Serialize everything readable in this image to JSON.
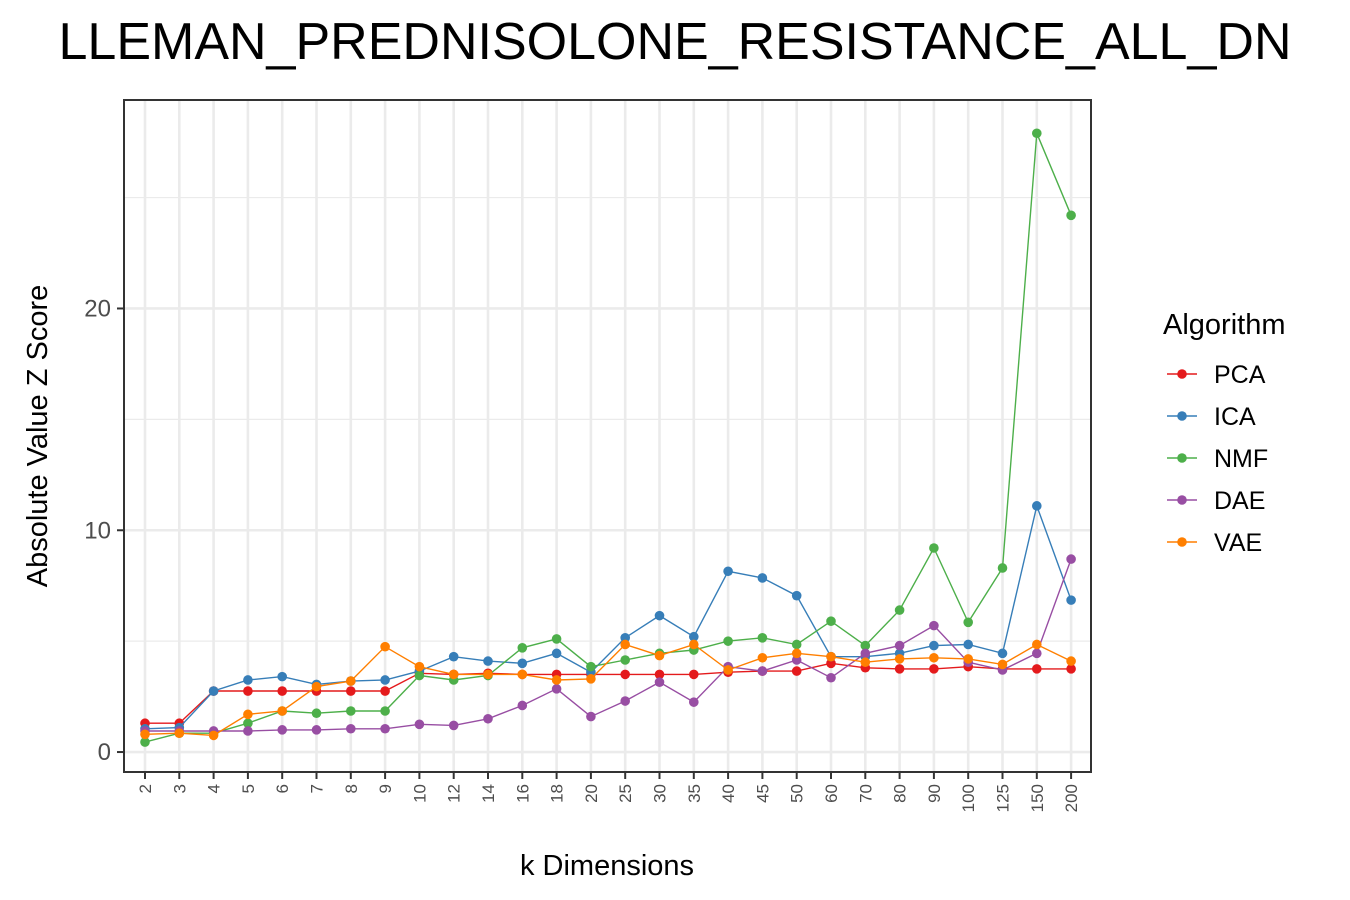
{
  "chart_data": {
    "type": "line",
    "title": "LLEMAN_PREDNISOLONE_RESISTANCE_ALL_DN",
    "xlabel": "k Dimensions",
    "ylabel": "Absolute Value Z Score",
    "categories": [
      "2",
      "3",
      "4",
      "5",
      "6",
      "7",
      "8",
      "9",
      "10",
      "12",
      "14",
      "16",
      "18",
      "20",
      "25",
      "30",
      "35",
      "40",
      "45",
      "50",
      "60",
      "70",
      "80",
      "90",
      "100",
      "125",
      "150",
      "200"
    ],
    "y_ticks": [
      0,
      10,
      20
    ],
    "ylim": [
      -0.9,
      29.4
    ],
    "grid": true,
    "legend": {
      "title": "Algorithm",
      "position": "right"
    },
    "series": [
      {
        "name": "PCA",
        "color": "#E41A1C",
        "values": [
          1.3,
          1.3,
          2.75,
          2.75,
          2.75,
          2.75,
          2.75,
          2.75,
          3.55,
          3.5,
          3.55,
          3.5,
          3.5,
          3.5,
          3.5,
          3.5,
          3.5,
          3.6,
          3.65,
          3.65,
          4.0,
          3.8,
          3.75,
          3.75,
          3.85,
          3.75,
          3.75,
          3.75
        ]
      },
      {
        "name": "ICA",
        "color": "#377EB8",
        "values": [
          1.05,
          1.1,
          2.75,
          3.25,
          3.4,
          3.05,
          3.2,
          3.25,
          3.65,
          4.3,
          4.1,
          4.0,
          4.45,
          3.6,
          5.15,
          6.15,
          5.2,
          8.15,
          7.85,
          7.05,
          4.3,
          4.3,
          4.45,
          4.8,
          4.85,
          4.45,
          11.1,
          6.85
        ]
      },
      {
        "name": "NMF",
        "color": "#4DAF4A",
        "values": [
          0.45,
          0.85,
          0.85,
          1.3,
          1.85,
          1.75,
          1.85,
          1.85,
          3.45,
          3.25,
          3.45,
          4.7,
          5.1,
          3.85,
          4.15,
          4.45,
          4.6,
          5.0,
          5.15,
          4.85,
          5.9,
          4.8,
          6.4,
          9.2,
          5.85,
          8.3,
          27.9,
          24.2
        ]
      },
      {
        "name": "DAE",
        "color": "#984EA3",
        "values": [
          0.95,
          0.95,
          0.95,
          0.95,
          1.0,
          1.0,
          1.05,
          1.05,
          1.25,
          1.2,
          1.5,
          2.1,
          2.85,
          1.6,
          2.3,
          3.15,
          2.25,
          3.85,
          3.65,
          4.15,
          3.35,
          4.45,
          4.8,
          5.7,
          4.05,
          3.7,
          4.45,
          8.7
        ]
      },
      {
        "name": "VAE",
        "color": "#FF7F00",
        "values": [
          0.8,
          0.85,
          0.75,
          1.7,
          1.85,
          2.95,
          3.2,
          4.75,
          3.85,
          3.5,
          3.5,
          3.5,
          3.25,
          3.3,
          4.85,
          4.35,
          4.85,
          3.7,
          4.25,
          4.45,
          4.3,
          4.05,
          4.2,
          4.25,
          4.2,
          3.95,
          4.85,
          4.1
        ]
      }
    ]
  }
}
